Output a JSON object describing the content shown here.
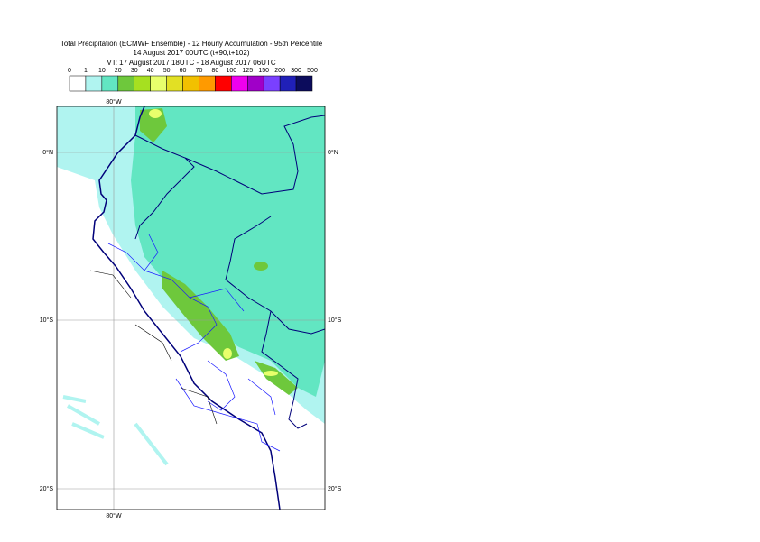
{
  "title": {
    "line1": "Total Precipitation (ECMWF Ensemble) - 12 Hourly Accumulation - 95th Percentile",
    "line2": "14 August 2017 00UTC (t+90,t+102)",
    "line3": "VT: 17 August 2017 18UTC - 18 August 2017 06UTC"
  },
  "colorbar": {
    "labels": [
      0,
      1,
      10,
      20,
      30,
      40,
      50,
      60,
      70,
      80,
      100,
      125,
      150,
      200,
      300,
      500
    ],
    "colors": [
      "#ffffff",
      "#b0f4f0",
      "#62e6c2",
      "#6ec83c",
      "#a6e020",
      "#e8ff6c",
      "#e2e024",
      "#f2c000",
      "#ff9a00",
      "#ff0000",
      "#ee00ee",
      "#a000c8",
      "#7a40ff",
      "#2020b8",
      "#0c0c5c"
    ]
  },
  "map": {
    "lat_labels": [
      "0°N",
      "10°S",
      "20°S"
    ],
    "lon_label": "80°W"
  }
}
